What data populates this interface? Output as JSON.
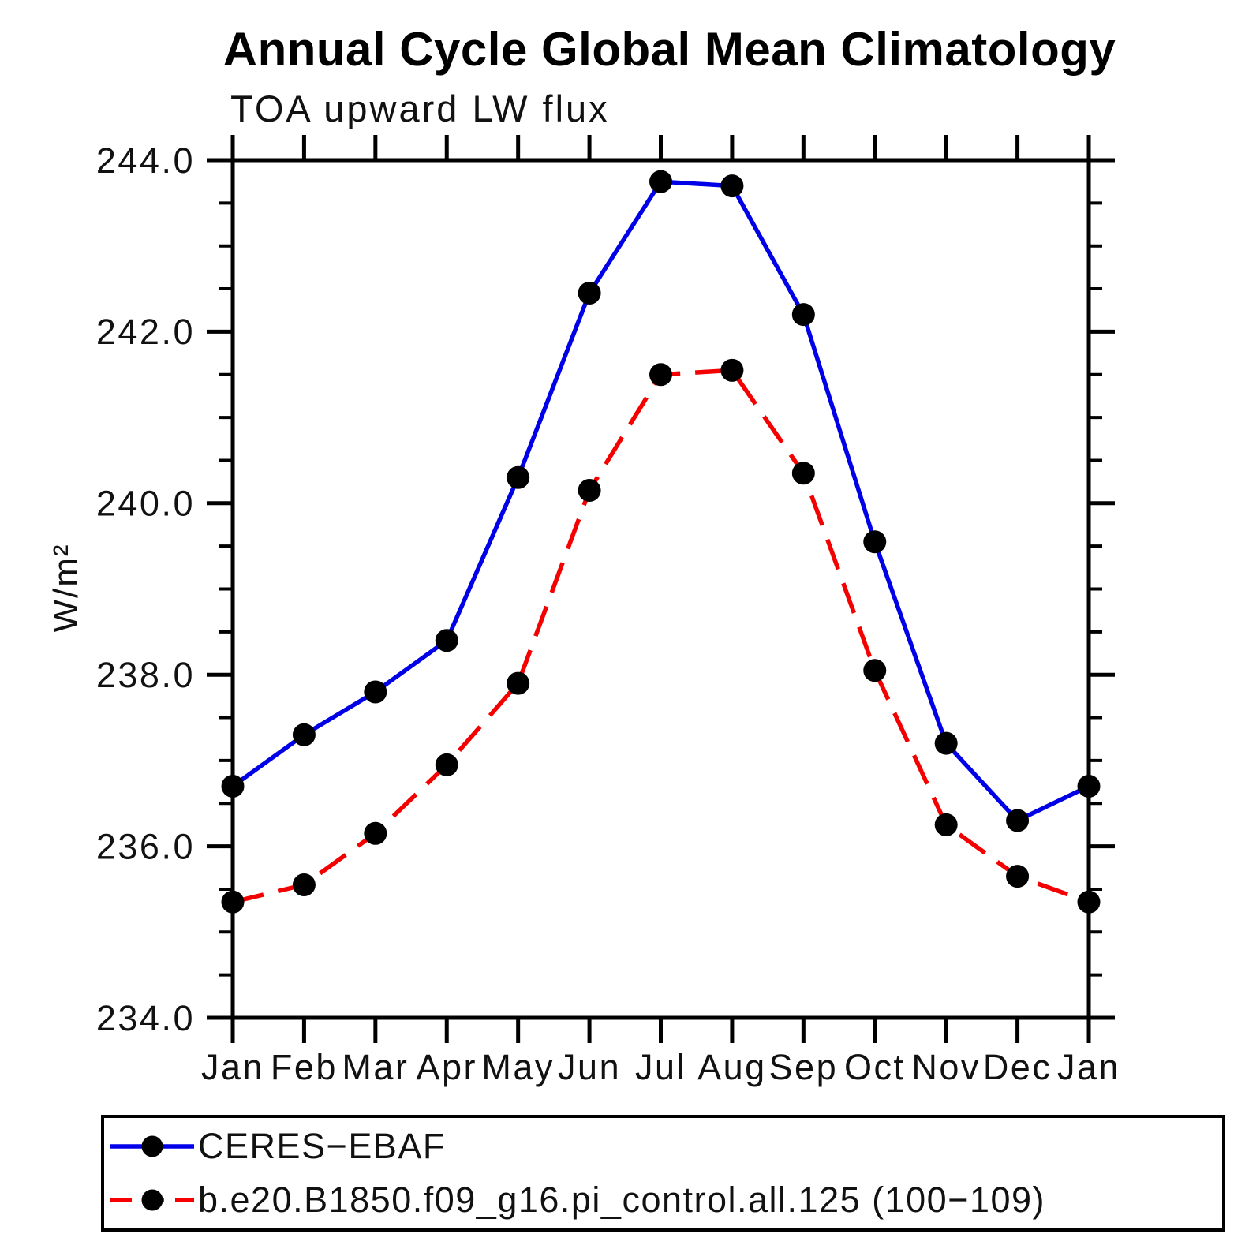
{
  "title": "Annual Cycle Global Mean Climatology",
  "subtitle": "TOA upward LW flux",
  "colors": {
    "axis": "#000000",
    "marker": "#000000",
    "series1": "#0000e8",
    "series2": "#f40000",
    "background": "#ffffff"
  },
  "chart_data": {
    "type": "line",
    "title": "Annual Cycle Global Mean Climatology",
    "subtitle": "TOA upward LW flux",
    "xlabel": "",
    "ylabel": "W/m²",
    "ylim": [
      234.0,
      244.0
    ],
    "ytick_major_interval": 2.0,
    "ytick_minor_interval": 0.5,
    "ytick_labels": [
      "244.0",
      "242.0",
      "240.0",
      "238.0",
      "236.0",
      "234.0"
    ],
    "grid": false,
    "legend_position": "bottom-left-box",
    "x_categories": [
      "Jan",
      "Feb",
      "Mar",
      "Apr",
      "May",
      "Jun",
      "Jul",
      "Aug",
      "Sep",
      "Oct",
      "Nov",
      "Dec",
      "Jan"
    ],
    "series": [
      {
        "name": "CERES−EBAF",
        "color": "#0000e8",
        "line_style": "solid",
        "marker": "filled-circle",
        "marker_color": "#000000",
        "values": [
          236.7,
          237.3,
          237.8,
          238.4,
          240.3,
          242.45,
          243.75,
          243.7,
          242.2,
          239.55,
          237.2,
          236.3,
          236.7
        ]
      },
      {
        "name": "b.e20.B1850.f09_g16.pi_control.all.125 (100−109)",
        "color": "#f40000",
        "line_style": "dashed",
        "marker": "filled-circle",
        "marker_color": "#000000",
        "values": [
          235.35,
          235.55,
          236.15,
          236.95,
          237.9,
          240.15,
          241.5,
          241.55,
          240.35,
          238.05,
          236.25,
          235.65,
          235.35
        ]
      }
    ]
  }
}
